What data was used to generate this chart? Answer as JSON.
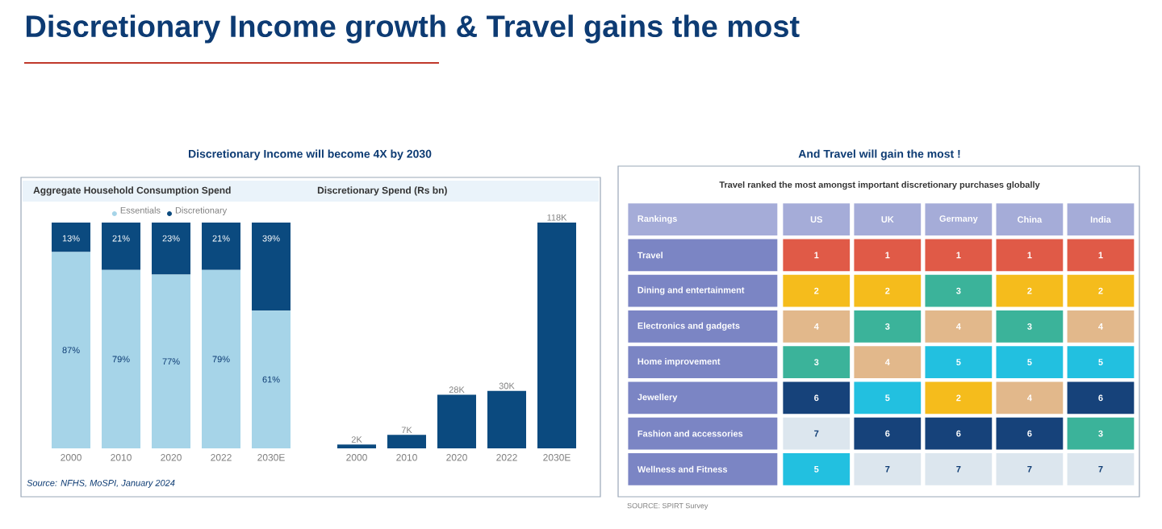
{
  "chart_data": [
    {
      "type": "bar",
      "stacked": true,
      "title": "Aggregate Household Consumption Spend",
      "annotations": [
        "Discretionary Income growth & Travel gains the most",
        "Discretionary Income will become 4X by 2030",
        "Source: NFHS, MoSPI, January 2024"
      ],
      "categories": [
        "2000",
        "2010",
        "2020",
        "2022",
        "2030E"
      ],
      "tick_labels": "x",
      "legend": "top",
      "series": [
        {
          "name": "Essentials",
          "color": "#a6d4e8",
          "values": [
            87,
            79,
            77,
            79,
            61
          ],
          "value_labels": [
            "87%",
            "79%",
            "77%",
            "79%",
            "61%"
          ]
        },
        {
          "name": "Discretionary",
          "color": "#0b4a7f",
          "values": [
            13,
            21,
            23,
            21,
            39
          ],
          "value_labels": [
            "13%",
            "21%",
            "23%",
            "21%",
            "39%"
          ]
        }
      ]
    },
    {
      "type": "bar",
      "title": "Discretionary Spend (Rs bn)",
      "categories": [
        "2000",
        "2010",
        "2020",
        "2022",
        "2030E"
      ],
      "ylim": [
        0,
        118000
      ],
      "tick_labels": "x",
      "series": [
        {
          "color": "#0b4a7f",
          "values": [
            2000,
            7000,
            28000,
            30000,
            118000
          ],
          "value_labels": [
            "2K",
            "7K",
            "28K",
            "30K",
            "118K"
          ]
        }
      ]
    },
    {
      "type": "heatmap",
      "title": "Travel ranked the most amongst important discretionary purchases globally",
      "ylabel": "Rankings",
      "annotations": [
        "And Travel will gain the most !",
        "SOURCE: SPIRT Survey"
      ],
      "categories": [
        "US",
        "UK",
        "Germany",
        "China",
        "India"
      ],
      "y_categories": [
        "Travel",
        "Dining and entertainment",
        "Electronics and gadgets",
        "Home improvement",
        "Jewellery",
        "Fashion and accessories",
        "Wellness and Fitness"
      ],
      "cells": [
        [
          1,
          1,
          1,
          1,
          1
        ],
        [
          2,
          2,
          3,
          2,
          2
        ],
        [
          4,
          3,
          4,
          3,
          4
        ],
        [
          3,
          4,
          5,
          5,
          5
        ],
        [
          6,
          5,
          2,
          4,
          6
        ],
        [
          7,
          6,
          6,
          6,
          3
        ],
        [
          5,
          7,
          7,
          7,
          7
        ]
      ],
      "data_labels": true
    }
  ]
}
